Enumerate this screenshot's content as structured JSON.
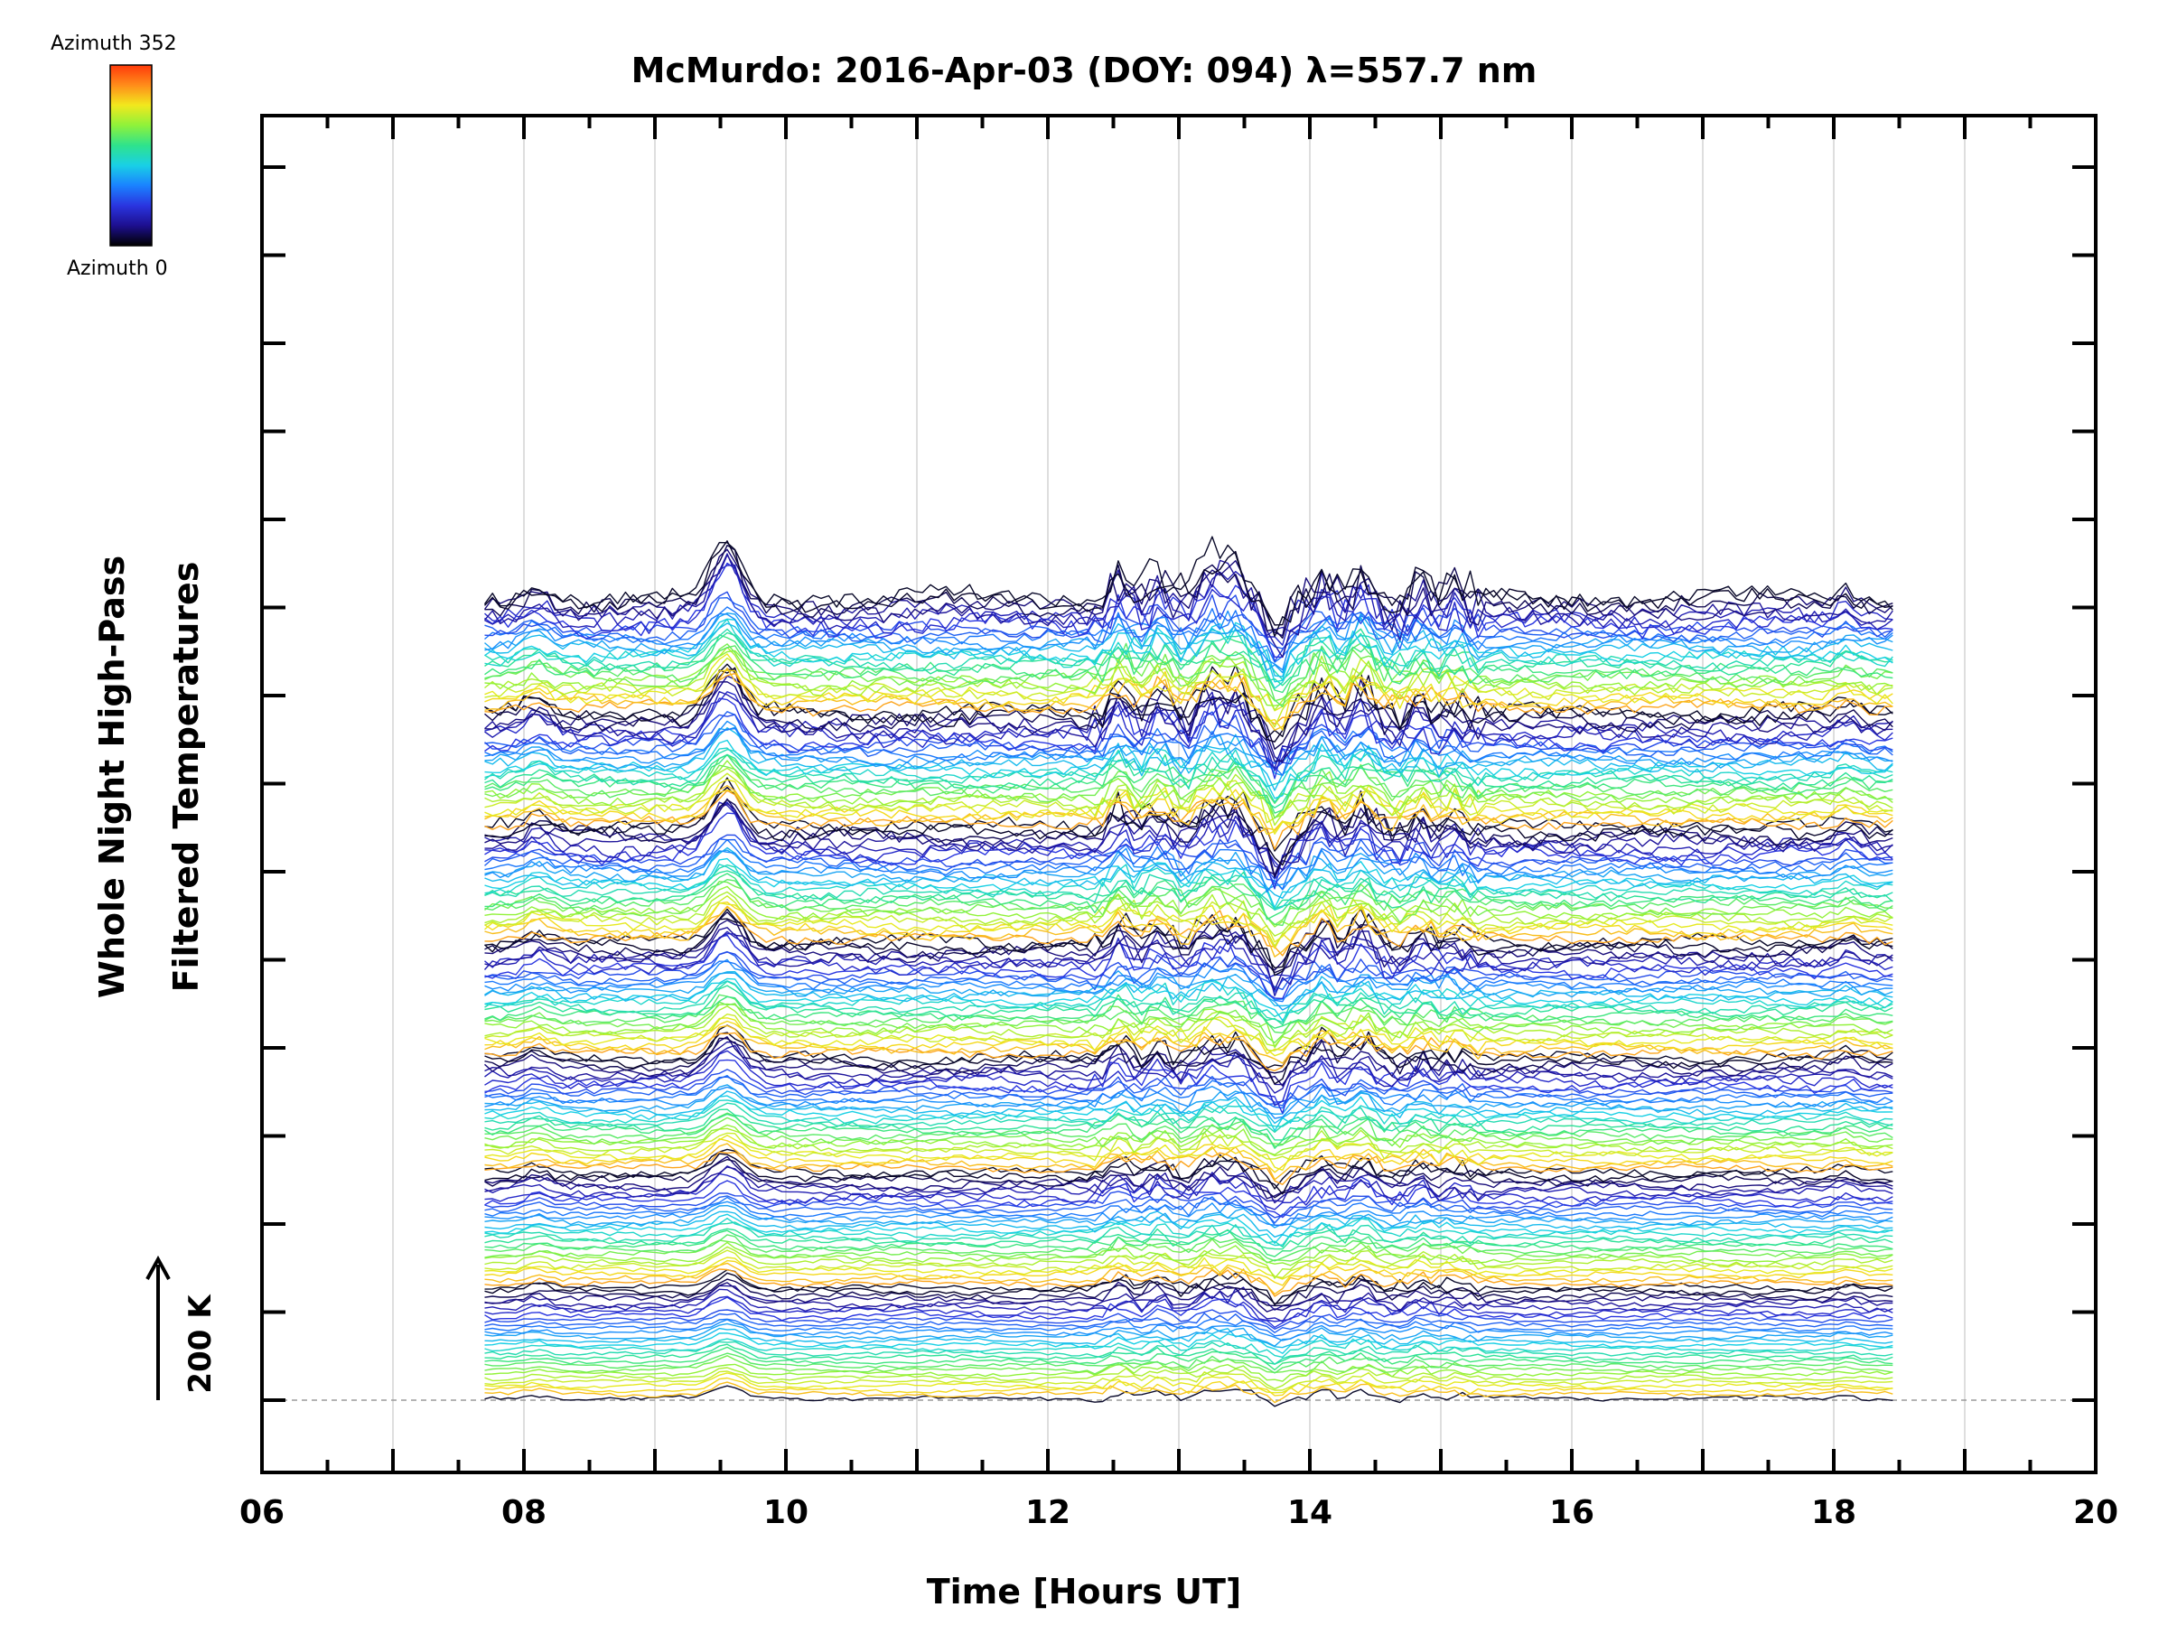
{
  "chart_data": {
    "type": "line",
    "title": "McMurdo: 2016-Apr-03 (DOY: 094) λ=557.7 nm",
    "xlabel": "Time [Hours UT]",
    "ylabel": [
      "Whole Night High-Pass",
      "Filtered Temperatures"
    ],
    "xlim": [
      6,
      20
    ],
    "x_ticks": [
      "06",
      "08",
      "10",
      "12",
      "14",
      "16",
      "18",
      "20"
    ],
    "data_time_range": [
      7.7,
      18.45
    ],
    "scale_bar": "200 K",
    "colorbar": {
      "max_label": "Azimuth 352",
      "min_label": "Azimuth 0"
    },
    "n_groups": 7,
    "series_per_group": 28,
    "common_events_hours": [
      8.1,
      9.55,
      12.55,
      12.85,
      13.25,
      13.45,
      13.75,
      14.1,
      14.4,
      14.85,
      15.1,
      18.1
    ],
    "grid": true
  },
  "colors": {
    "colormap": [
      "#000000",
      "#1d0f8f",
      "#2a35e0",
      "#1a82ff",
      "#19d0e6",
      "#2fe38c",
      "#8ff23a",
      "#f2e81d",
      "#ff8c1a",
      "#ff3a0a"
    ],
    "axis": "#000000",
    "grid": "#d3d3d3"
  }
}
